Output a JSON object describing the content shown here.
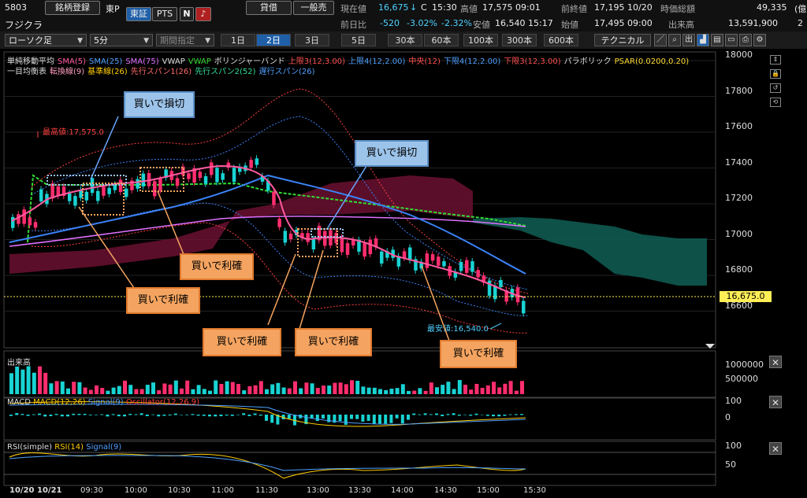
{
  "header": {
    "code": "5803",
    "register_label": "銘柄登録",
    "market": "東P",
    "exchange_tab": "東証",
    "pts_tab": "PTS",
    "n_badge": "N",
    "lending_label": "貸借",
    "general_label": "一般売",
    "name": "フジクラ",
    "current_label": "現在値",
    "current_value": "16,675",
    "current_arrow": "↓",
    "current_c": "C",
    "current_time": "15:30",
    "high_label": "高値",
    "high_value": "17,575",
    "high_time": "09:01",
    "prev_label": "前終値",
    "prev_value": "17,195",
    "prev_date": "10/20",
    "mcap_label": "時価総額",
    "mcap_value": "49,335",
    "mcap_unit": "(億",
    "change_label": "前日比",
    "change_value": "-520",
    "change_pct": "-3.02%",
    "change_pct2": "-2.32%",
    "low_label": "安値",
    "low_value": "16,540",
    "low_time": "15:17",
    "open_label": "始値",
    "open_value": "17,495",
    "open_time": "09:00",
    "volume_label": "出来高",
    "volume_value": "13,591,900",
    "volume_tail": "2"
  },
  "toolbar": {
    "chart_type": "ローソク足",
    "interval": "5分",
    "period_placeholder": "期間指定",
    "periods": [
      "1日",
      "2日",
      "3日",
      "5日",
      "30本",
      "60本",
      "100本",
      "300本",
      "600本"
    ],
    "active_period": "2日",
    "technical_label": "テクニカル"
  },
  "legend": {
    "row1": [
      {
        "text": "単純移動平均",
        "color": "#dddddd"
      },
      {
        "text": "SMA(5)",
        "color": "#ff5aa0"
      },
      {
        "text": "SMA(25)",
        "color": "#4fa0ff"
      },
      {
        "text": "SMA(75)",
        "color": "#e070ff"
      },
      {
        "text": "VWAP",
        "color": "#dddddd"
      },
      {
        "text": "VWAP",
        "color": "#33dd33"
      },
      {
        "text": "ボリンジャーバンド",
        "color": "#dddddd"
      },
      {
        "text": "上限3(12,3.00)",
        "color": "#ff5050"
      },
      {
        "text": "上限4(12,2.00)",
        "color": "#4fa0ff"
      },
      {
        "text": "中央(12)",
        "color": "#ff5050"
      },
      {
        "text": "下限4(12,2.00)",
        "color": "#4fa0ff"
      },
      {
        "text": "下限3(12,3.00)",
        "color": "#ff5050"
      },
      {
        "text": "パラボリック",
        "color": "#dddddd"
      },
      {
        "text": "PSAR(0.0200,0.20)",
        "color": "#ffdd33"
      }
    ],
    "row2": [
      {
        "text": "一目均衡表",
        "color": "#dddddd"
      },
      {
        "text": "転換線(9)",
        "color": "#ff9ec0"
      },
      {
        "text": "基準線(26)",
        "color": "#ffcc00"
      },
      {
        "text": "先行スパン1(26)",
        "color": "#ff6a6a"
      },
      {
        "text": "先行スパン2(52)",
        "color": "#33dd99"
      },
      {
        "text": "遅行スパン(26)",
        "color": "#4fa0ff"
      }
    ]
  },
  "price_axis": [
    "18000",
    "17800",
    "17600",
    "17400",
    "17200",
    "17000",
    "16800",
    "16600"
  ],
  "current_price_tag": "16,675.0",
  "high_marker": "最高値:17,575.0",
  "low_marker": "最安値:16,540.0",
  "callouts": {
    "stop1": "買いで損切",
    "stop2": "買いで損切",
    "profit1": "買いで利確",
    "profit2": "買いで利確",
    "profit3": "買いで利確",
    "profit4": "買いで利確",
    "profit5": "買いで利確"
  },
  "volume_panel": {
    "title": "出来高",
    "axis": [
      "1000000",
      "500000"
    ]
  },
  "macd_panel": {
    "title": "MACD",
    "macd": "MACD(12,26)",
    "signal": "Signal(9)",
    "osc": "Oscillator(12,26,9)",
    "axis": [
      "100",
      "0"
    ]
  },
  "rsi_panel": {
    "title": "RSI(simple)",
    "rsi": "RSI(14)",
    "signal": "Signal(9)",
    "axis": [
      "100",
      "50"
    ]
  },
  "time_axis": [
    "10/20",
    "10/21",
    "09:30",
    "10:00",
    "10:30",
    "11:00",
    "11:30",
    "13:00",
    "13:30",
    "14:00",
    "14:30",
    "15:00",
    "15:30"
  ],
  "colors": {
    "up": "#ff2e6e",
    "down": "#19d3d3",
    "sma25": "#3b82f6",
    "vwap": "#33dd33",
    "cloud_red": "#6a1030",
    "cloud_green": "#0e5a50"
  }
}
